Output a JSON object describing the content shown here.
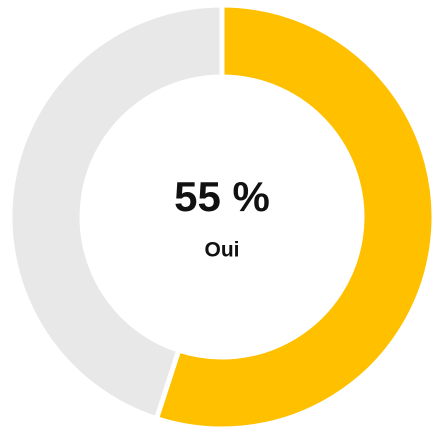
{
  "chart_data": {
    "type": "donut",
    "categories": [
      "Oui",
      null
    ],
    "values": [
      55,
      45
    ],
    "value_labels": [
      "55 %",
      null
    ],
    "colors": [
      "#FFC000",
      "#E8E8E8"
    ]
  }
}
